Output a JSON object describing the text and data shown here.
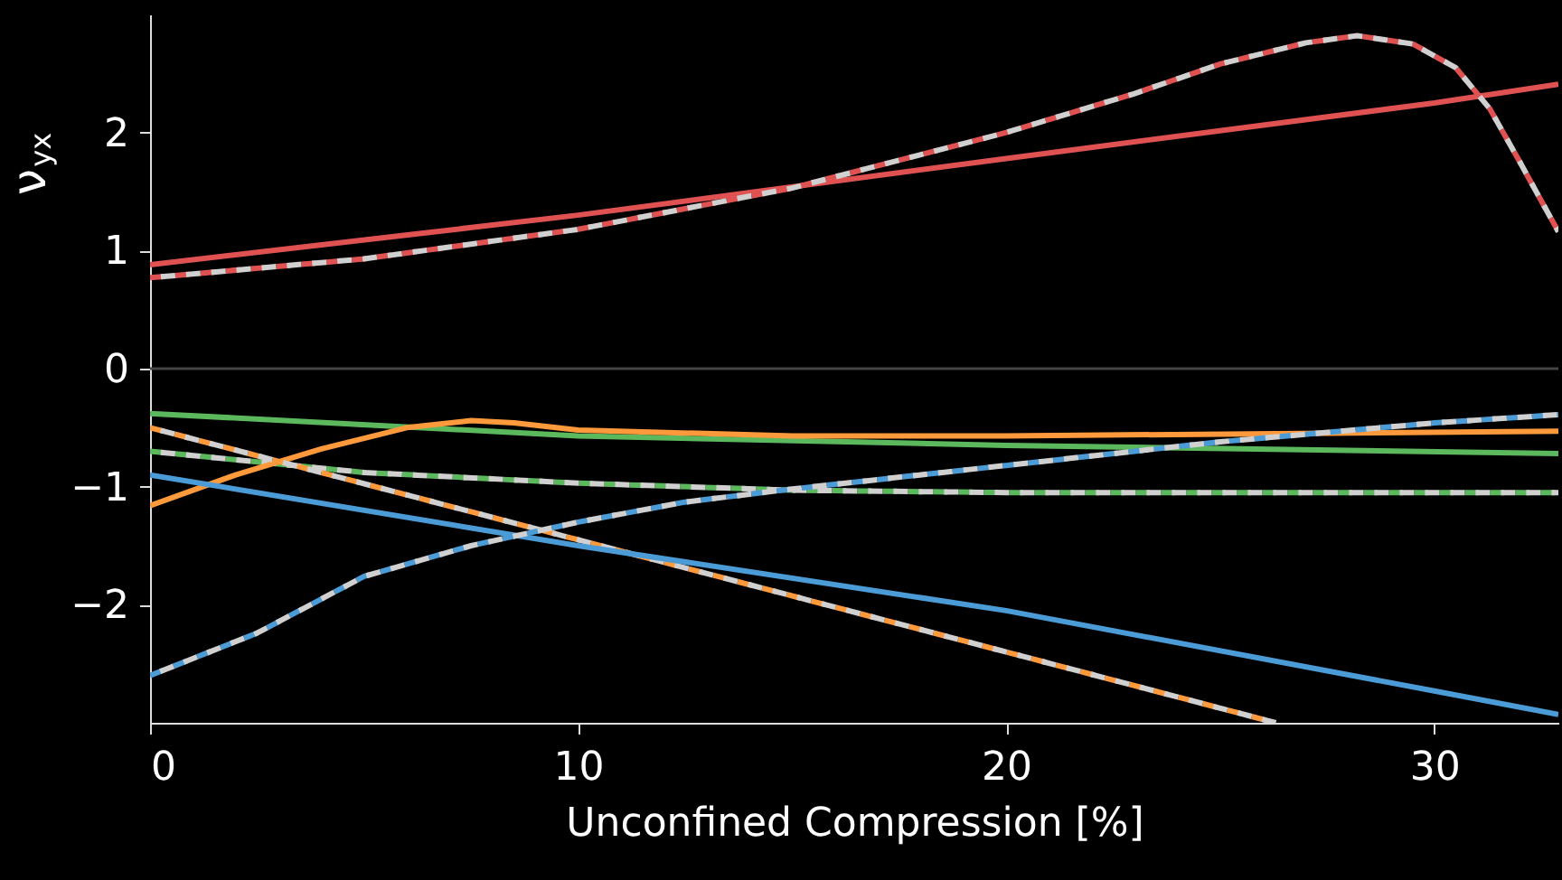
{
  "chart_data": {
    "type": "line",
    "xlabel": "Unconfined Compression [%]",
    "ylabel": "ν$_{yx}$",
    "xlim": [
      0,
      32.9
    ],
    "ylim": [
      -3,
      3
    ],
    "xticks": [
      0,
      10,
      20,
      30
    ],
    "yticks": [
      -2,
      -1,
      0,
      1,
      2
    ],
    "grid": false,
    "ref_lines": [
      {
        "axis": "y",
        "value": 0,
        "color": "#444444"
      }
    ],
    "series": [
      {
        "color": "#e05252",
        "line_style": "solid",
        "x": [
          0,
          10,
          20,
          30,
          32.9
        ],
        "values": [
          0.88,
          1.3,
          1.78,
          2.25,
          2.41
        ]
      },
      {
        "color": "#e05252",
        "line_style": "dashed",
        "x": [
          0,
          5,
          10,
          15,
          20,
          23,
          25,
          27,
          28.2,
          29.5,
          30.5,
          31.3,
          32,
          32.9
        ],
        "values": [
          0.77,
          0.93,
          1.18,
          1.53,
          2.0,
          2.33,
          2.58,
          2.76,
          2.82,
          2.75,
          2.55,
          2.2,
          1.75,
          1.16
        ]
      },
      {
        "color": "#5cb85c",
        "line_style": "solid",
        "x": [
          0,
          10,
          20,
          32.9
        ],
        "values": [
          -0.38,
          -0.57,
          -0.65,
          -0.72
        ]
      },
      {
        "color": "#5cb85c",
        "line_style": "dashed",
        "x": [
          0,
          5,
          10,
          15,
          20,
          32.9
        ],
        "values": [
          -0.7,
          -0.88,
          -0.97,
          -1.03,
          -1.05,
          -1.05
        ]
      },
      {
        "color": "#ff9a3c",
        "line_style": "solid",
        "x": [
          0,
          2,
          4,
          6,
          7.5,
          8.5,
          10,
          15,
          20,
          32.9
        ],
        "values": [
          -1.16,
          -0.9,
          -0.68,
          -0.5,
          -0.44,
          -0.46,
          -0.52,
          -0.57,
          -0.57,
          -0.53
        ]
      },
      {
        "color": "#ff9a3c",
        "line_style": "dashed",
        "x": [
          0,
          10,
          20,
          26.3
        ],
        "values": [
          -0.5,
          -1.45,
          -2.4,
          -3.0
        ]
      },
      {
        "color": "#4a9bd6",
        "line_style": "solid",
        "x": [
          0,
          10,
          20,
          30,
          32.9
        ],
        "values": [
          -0.9,
          -1.5,
          -2.05,
          -2.73,
          -2.93
        ]
      },
      {
        "color": "#4a9bd6",
        "line_style": "dashed",
        "x": [
          0,
          2.5,
          5,
          7.5,
          10,
          12.5,
          15,
          20,
          25,
          30,
          32.9
        ],
        "values": [
          -2.6,
          -2.24,
          -1.76,
          -1.5,
          -1.3,
          -1.13,
          -1.02,
          -0.82,
          -0.62,
          -0.46,
          -0.39
        ]
      }
    ]
  }
}
